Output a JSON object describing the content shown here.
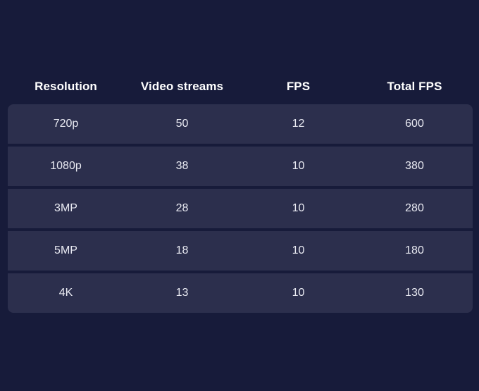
{
  "table": {
    "headers": [
      "Resolution",
      "Video streams",
      "FPS",
      "Total FPS"
    ],
    "rows": [
      [
        "720p",
        "50",
        "12",
        "600"
      ],
      [
        "1080p",
        "38",
        "10",
        "380"
      ],
      [
        "3MP",
        "28",
        "10",
        "280"
      ],
      [
        "5MP",
        "18",
        "10",
        "180"
      ],
      [
        "4K",
        "13",
        "10",
        "130"
      ]
    ]
  },
  "colors": {
    "background": "#171b3a",
    "row_background": "#2c2f4d",
    "text": "#ffffff"
  }
}
